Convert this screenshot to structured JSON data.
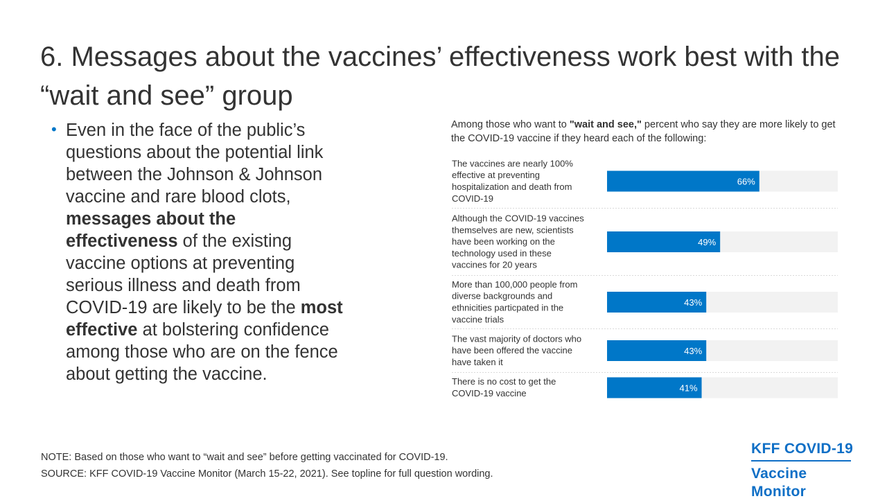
{
  "title": "6. Messages about the vaccines’ effectiveness work best with the “wait and see” group",
  "bullet": {
    "parts": [
      {
        "text": "Even in the face of the public’s questions about the potential link between the Johnson & Johnson vaccine and rare blood clots, ",
        "bold": false
      },
      {
        "text": "messages about the effectiveness",
        "bold": true
      },
      {
        "text": " of the existing vaccine options at preventing serious illness and death from COVID-19 are likely to be the ",
        "bold": false
      },
      {
        "text": "most effective",
        "bold": true
      },
      {
        "text": " at bolstering confidence among those who are on the fence about getting the vaccine.",
        "bold": false
      }
    ]
  },
  "chart_intro": {
    "pre": "Among those who want to ",
    "bold": "\"wait and see,\"",
    "post": " percent who say they are more likely to get the COVID-19 vaccine if they heard each of the following:"
  },
  "colors": {
    "bar": "#0077c8",
    "track": "#f2f2f2",
    "divider": "#d9d9d9",
    "logo": "#0f6fc6"
  },
  "chart_data": {
    "type": "bar",
    "orientation": "horizontal",
    "categories": [
      "The vaccines are nearly 100% effective at preventing hospitalization and death from COVID-19",
      "Although the COVID-19 vaccines themselves are new, scientists have been working on the technology used in these vaccines for 20 years",
      "More than 100,000 people from diverse backgrounds and ethnicities particpated in the vaccine trials",
      "The vast majority of doctors who have been offered the vaccine have taken it",
      "There is no cost to get the COVID-19 vaccine"
    ],
    "category_lines": [
      [
        "The vaccines are nearly 100%",
        "effective at preventing",
        "hospitalization and death from",
        "COVID-19"
      ],
      [
        "Although the COVID-19 vaccines",
        "themselves are new, scientists",
        "have been working on the",
        "technology used in these",
        "vaccines for 20 years"
      ],
      [
        "More than 100,000 people from",
        "diverse backgrounds and",
        "ethnicities particpated in the",
        "vaccine trials"
      ],
      [
        "The vast majority of doctors who",
        "have been offered the vaccine",
        "have taken it"
      ],
      [
        "There is no cost to get the",
        "COVID-19 vaccine"
      ]
    ],
    "values": [
      66,
      49,
      43,
      43,
      41
    ],
    "labels": [
      "66%",
      "49%",
      "43%",
      "43%",
      "41%"
    ],
    "xlim": [
      0,
      100
    ],
    "title": "",
    "xlabel": "",
    "ylabel": "",
    "grid": false,
    "legend": "none"
  },
  "footer": {
    "note": "NOTE: Based on those who want to “wait and see” before getting vaccinated for COVID-19.",
    "source": "SOURCE: KFF COVID-19 Vaccine Monitor (March 15-22, 2021). See topline for full question wording."
  },
  "logo": {
    "line1": "KFF COVID-19",
    "line2": "Vaccine Monitor"
  }
}
